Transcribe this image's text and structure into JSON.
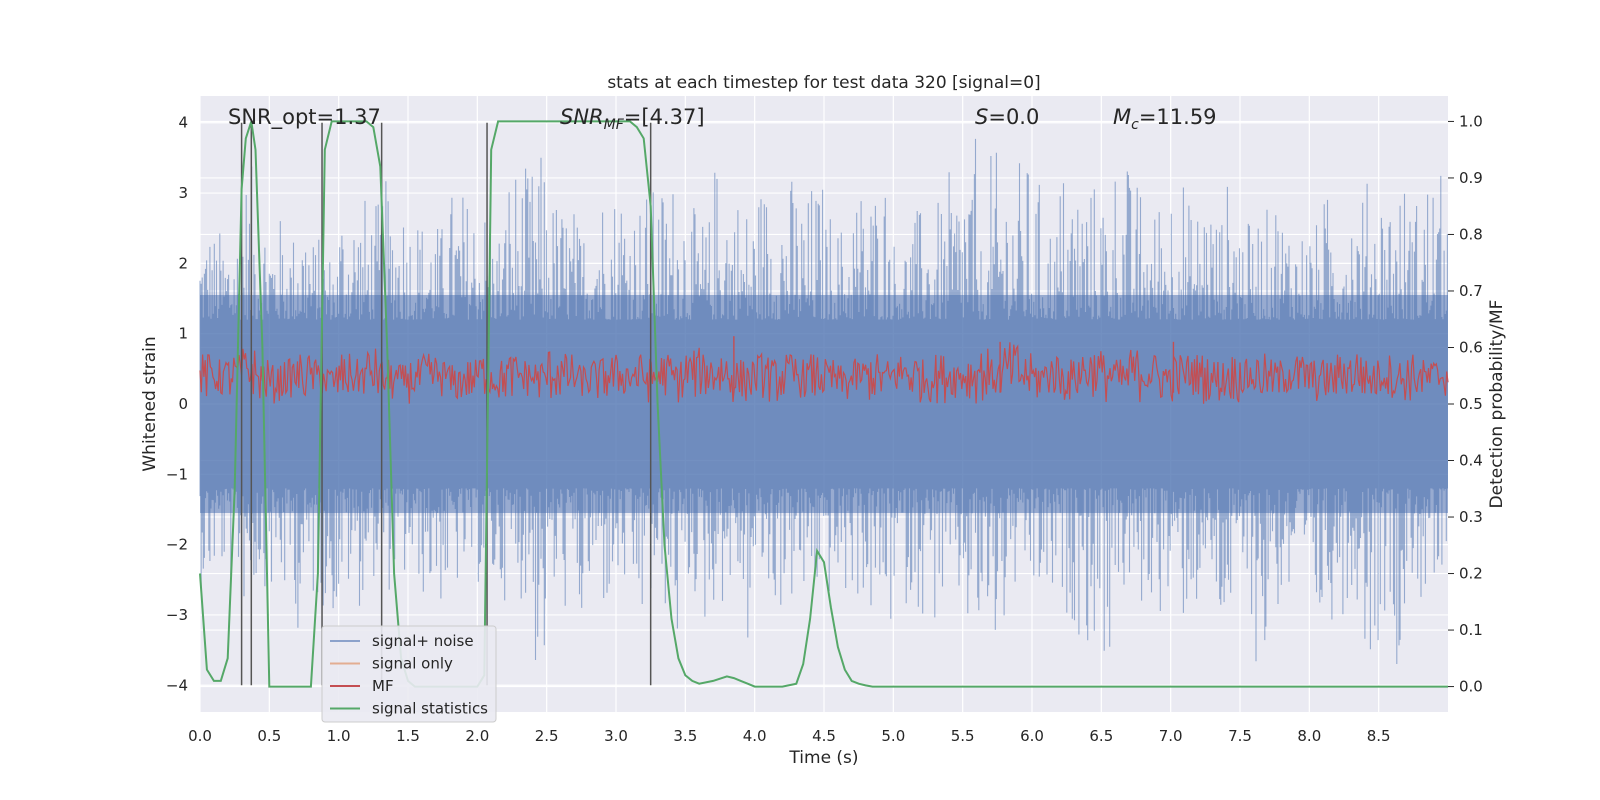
{
  "chart_data": {
    "type": "line",
    "title": "stats at each timestep for test data 320 [signal=0]",
    "xlabel": "Time (s)",
    "ylabel": "Whitened strain",
    "y2label": "Detection probability/MF",
    "xlim": [
      0.0,
      9.0
    ],
    "ylim": [
      -4.38,
      4.38
    ],
    "y2lim": [
      -0.045,
      1.045
    ],
    "xticks": [
      0.0,
      0.5,
      1.0,
      1.5,
      2.0,
      2.5,
      3.0,
      3.5,
      4.0,
      4.5,
      5.0,
      5.5,
      6.0,
      6.5,
      7.0,
      7.5,
      8.0,
      8.5
    ],
    "xtick_labels": [
      "0.0",
      "0.5",
      "1.0",
      "1.5",
      "2.0",
      "2.5",
      "3.0",
      "3.5",
      "4.0",
      "4.5",
      "5.0",
      "5.5",
      "6.0",
      "6.5",
      "7.0",
      "7.5",
      "8.0",
      "8.5"
    ],
    "yticks": [
      4,
      3,
      2,
      1,
      0,
      -1,
      -2,
      -3,
      -4
    ],
    "ytick_labels": [
      "4",
      "3",
      "2",
      "1",
      "0",
      "−1",
      "−2",
      "−3",
      "−4"
    ],
    "y2ticks": [
      1.0,
      0.9,
      0.8,
      0.7,
      0.6,
      0.5,
      0.4,
      0.3,
      0.2,
      0.1,
      0.0
    ],
    "y2tick_labels": [
      "1.0",
      "0.9",
      "0.8",
      "0.7",
      "0.6",
      "0.5",
      "0.4",
      "0.3",
      "0.2",
      "0.1",
      "0.0"
    ],
    "grid": true,
    "annotations": {
      "snr_opt": "SNR_opt=1.37",
      "snr_mf": "SNR",
      "snr_mf_sub": "MF",
      "snr_mf_value": "=[4.37]",
      "s_label": "S",
      "s_value": "=0.0",
      "mc_label": "M",
      "mc_sub": "c",
      "mc_value": "=11.59"
    },
    "vlines_time": [
      0.3,
      0.37,
      0.88,
      1.31,
      2.07,
      3.25
    ],
    "legend_position": "lower-left",
    "series": [
      {
        "name": "signal+ noise",
        "color": "#4c72b0",
        "axis": "left",
        "description": "noise amplitude envelope (max, min) per time bin",
        "x": [
          0.0,
          0.1,
          0.2,
          0.3,
          0.4,
          0.5,
          0.6,
          0.7,
          0.8,
          0.9,
          1.0,
          1.1,
          1.2,
          1.3,
          1.4,
          1.5,
          1.6,
          1.7,
          1.8,
          1.9,
          2.0,
          2.1,
          2.2,
          2.3,
          2.4,
          2.5,
          2.6,
          2.7,
          2.8,
          2.9,
          3.0,
          3.1,
          3.2,
          3.3,
          3.4,
          3.5,
          3.6,
          3.7,
          3.8,
          3.9,
          4.0,
          4.1,
          4.2,
          4.3,
          4.4,
          4.5,
          4.6,
          4.7,
          4.8,
          4.9,
          5.0,
          5.1,
          5.2,
          5.3,
          5.4,
          5.5,
          5.6,
          5.7,
          5.8,
          5.9,
          6.0,
          6.1,
          6.2,
          6.3,
          6.4,
          6.5,
          6.6,
          6.7,
          6.8,
          6.9,
          7.0,
          7.1,
          7.2,
          7.3,
          7.4,
          7.5,
          7.6,
          7.7,
          7.8,
          7.9,
          8.0,
          8.1,
          8.2,
          8.3,
          8.4,
          8.5,
          8.6,
          8.7,
          8.8,
          8.9
        ],
        "upper": [
          2.6,
          2.5,
          2.6,
          3.4,
          2.9,
          2.7,
          2.5,
          2.9,
          2.4,
          2.2,
          3.0,
          3.0,
          2.9,
          3.2,
          3.1,
          2.8,
          2.7,
          2.6,
          3.1,
          3.0,
          2.9,
          2.6,
          3.5,
          3.4,
          3.6,
          3.0,
          2.9,
          2.6,
          3.4,
          3.2,
          3.4,
          3.0,
          3.1,
          3.2,
          3.3,
          2.8,
          2.7,
          3.5,
          3.1,
          2.9,
          3.2,
          3.3,
          3.3,
          3.0,
          3.2,
          2.8,
          2.6,
          3.2,
          3.2,
          3.4,
          2.4,
          2.8,
          2.8,
          2.9,
          3.3,
          3.8,
          2.3,
          3.6,
          3.5,
          3.5,
          3.2,
          2.7,
          3.4,
          3.3,
          3.2,
          3.2,
          3.6,
          3.2,
          2.8,
          3.2,
          3.4,
          2.9,
          3.2,
          2.8,
          3.2,
          2.6,
          2.8,
          3.1,
          2.8,
          2.6,
          2.6,
          3.0,
          3.1,
          3.1,
          3.2,
          3.2,
          3.2,
          3.0,
          3.4,
          3.3
        ],
        "lower": [
          -2.7,
          -2.5,
          -2.6,
          -2.9,
          -2.6,
          -2.8,
          -2.9,
          -3.3,
          -2.9,
          -3.1,
          -2.8,
          -2.9,
          -2.5,
          -2.7,
          -2.6,
          -2.6,
          -2.8,
          -2.9,
          -2.7,
          -2.6,
          -2.6,
          -2.8,
          -2.8,
          -2.8,
          -3.9,
          -3.0,
          -3.0,
          -3.4,
          -2.9,
          -3.0,
          -2.8,
          -3.3,
          -3.0,
          -3.0,
          -3.6,
          -2.8,
          -3.3,
          -2.9,
          -2.7,
          -3.6,
          -2.6,
          -3.0,
          -2.9,
          -3.0,
          -2.8,
          -2.8,
          -2.9,
          -2.8,
          -3.2,
          -3.3,
          -2.9,
          -2.9,
          -3.2,
          -3.0,
          -3.0,
          -3.4,
          -3.6,
          -3.7,
          -2.8,
          -2.8,
          -2.9,
          -3.0,
          -3.1,
          -3.3,
          -3.6,
          -3.7,
          -2.8,
          -3.0,
          -2.9,
          -3.0,
          -3.2,
          -3.0,
          -2.8,
          -3.4,
          -3.2,
          -3.0,
          -4.0,
          -3.0,
          -3.0,
          -3.2,
          -3.4,
          -3.1,
          -3.0,
          -2.8,
          -3.6,
          -3.0,
          -3.7,
          -2.6,
          -3.0,
          -3.0
        ]
      },
      {
        "name": "signal only",
        "color": "#dd8452",
        "axis": "left",
        "x": [
          0.0,
          9.0
        ],
        "y": [
          0.0,
          0.0
        ]
      },
      {
        "name": "MF",
        "color": "#c44e52",
        "axis": "right",
        "description": "matched-filter output envelope (max, min) per time bin",
        "x": [
          0.0,
          0.1,
          0.2,
          0.3,
          0.4,
          0.5,
          0.6,
          0.7,
          0.8,
          0.9,
          1.0,
          1.1,
          1.2,
          1.3,
          1.4,
          1.5,
          1.6,
          1.7,
          1.8,
          1.9,
          2.0,
          2.1,
          2.2,
          2.3,
          2.4,
          2.5,
          2.6,
          2.7,
          2.8,
          2.9,
          3.0,
          3.1,
          3.2,
          3.3,
          3.4,
          3.5,
          3.6,
          3.7,
          3.8,
          3.9,
          4.0,
          4.1,
          4.2,
          4.3,
          4.4,
          4.5,
          4.6,
          4.7,
          4.8,
          4.9,
          5.0,
          5.1,
          5.2,
          5.3,
          5.4,
          5.5,
          5.6,
          5.7,
          5.8,
          5.9,
          6.0,
          6.1,
          6.2,
          6.3,
          6.4,
          6.5,
          6.6,
          6.7,
          6.8,
          6.9,
          7.0,
          7.1,
          7.2,
          7.3,
          7.4,
          7.5,
          7.6,
          7.7,
          7.8,
          7.9,
          8.0,
          8.1,
          8.2,
          8.3,
          8.4,
          8.5,
          8.6,
          8.7,
          8.8,
          8.9
        ],
        "upper": [
          0.59,
          0.58,
          0.59,
          0.6,
          0.58,
          0.57,
          0.58,
          0.59,
          0.58,
          0.57,
          0.59,
          0.58,
          0.6,
          0.58,
          0.57,
          0.58,
          0.59,
          0.58,
          0.57,
          0.58,
          0.59,
          0.58,
          0.59,
          0.58,
          0.58,
          0.6,
          0.59,
          0.57,
          0.58,
          0.59,
          0.58,
          0.59,
          0.58,
          0.59,
          0.58,
          0.6,
          0.59,
          0.6,
          0.58,
          0.58,
          0.59,
          0.58,
          0.59,
          0.58,
          0.59,
          0.58,
          0.57,
          0.58,
          0.59,
          0.58,
          0.59,
          0.59,
          0.58,
          0.59,
          0.58,
          0.59,
          0.6,
          0.58,
          0.61,
          0.59,
          0.58,
          0.59,
          0.58,
          0.6,
          0.6,
          0.59,
          0.58,
          0.6,
          0.59,
          0.58,
          0.59,
          0.59,
          0.59,
          0.58,
          0.59,
          0.58,
          0.59,
          0.58,
          0.59,
          0.59,
          0.58,
          0.58,
          0.59,
          0.6,
          0.58,
          0.59,
          0.58,
          0.59,
          0.58,
          0.58
        ],
        "lower": [
          0.5,
          0.51,
          0.5,
          0.51,
          0.5,
          0.5,
          0.51,
          0.5,
          0.51,
          0.5,
          0.5,
          0.51,
          0.5,
          0.5,
          0.51,
          0.5,
          0.5,
          0.51,
          0.5,
          0.5,
          0.51,
          0.5,
          0.5,
          0.51,
          0.5,
          0.5,
          0.5,
          0.51,
          0.5,
          0.5,
          0.51,
          0.5,
          0.5,
          0.51,
          0.5,
          0.5,
          0.51,
          0.5,
          0.5,
          0.5,
          0.51,
          0.5,
          0.5,
          0.51,
          0.5,
          0.5,
          0.5,
          0.51,
          0.5,
          0.5,
          0.51,
          0.5,
          0.5,
          0.5,
          0.51,
          0.5,
          0.5,
          0.51,
          0.5,
          0.5,
          0.5,
          0.51,
          0.5,
          0.5,
          0.51,
          0.5,
          0.5,
          0.5,
          0.51,
          0.5,
          0.5,
          0.51,
          0.5,
          0.5,
          0.5,
          0.51,
          0.5,
          0.5,
          0.51,
          0.5,
          0.5,
          0.5,
          0.51,
          0.5,
          0.5,
          0.51,
          0.5,
          0.5,
          0.5,
          0.51
        ],
        "peaks": [
          {
            "x": 0.88,
            "y": 0.63
          },
          {
            "x": 3.85,
            "y": 0.62
          },
          {
            "x": 5.77,
            "y": 0.61
          },
          {
            "x": 7.02,
            "y": 0.61
          }
        ]
      },
      {
        "name": "signal statistics",
        "color": "#55a868",
        "axis": "right",
        "x": [
          0.0,
          0.05,
          0.1,
          0.15,
          0.2,
          0.25,
          0.3,
          0.33,
          0.37,
          0.4,
          0.45,
          0.5,
          0.55,
          0.6,
          0.7,
          0.8,
          0.85,
          0.9,
          0.95,
          1.0,
          1.1,
          1.2,
          1.25,
          1.3,
          1.35,
          1.4,
          1.45,
          1.5,
          1.55,
          1.6,
          1.7,
          1.8,
          1.9,
          2.0,
          2.05,
          2.1,
          2.15,
          2.2,
          2.5,
          2.8,
          3.0,
          3.1,
          3.15,
          3.2,
          3.25,
          3.3,
          3.35,
          3.4,
          3.45,
          3.5,
          3.55,
          3.6,
          3.7,
          3.8,
          3.85,
          3.9,
          3.95,
          4.0,
          4.1,
          4.2,
          4.3,
          4.35,
          4.4,
          4.45,
          4.5,
          4.55,
          4.6,
          4.65,
          4.7,
          4.75,
          4.8,
          4.85,
          4.9,
          5.0,
          6.0,
          7.0,
          8.0,
          9.0
        ],
        "y": [
          0.2,
          0.03,
          0.01,
          0.01,
          0.05,
          0.35,
          0.88,
          0.97,
          1.0,
          0.95,
          0.6,
          0.0,
          0.0,
          0.0,
          0.0,
          0.0,
          0.2,
          0.95,
          1.0,
          1.0,
          1.0,
          1.0,
          0.99,
          0.92,
          0.6,
          0.2,
          0.05,
          0.01,
          0.0,
          0.0,
          0.0,
          0.0,
          0.0,
          0.0,
          0.02,
          0.95,
          1.0,
          1.0,
          1.0,
          1.0,
          1.0,
          1.0,
          0.99,
          0.97,
          0.85,
          0.5,
          0.25,
          0.12,
          0.05,
          0.02,
          0.01,
          0.005,
          0.01,
          0.018,
          0.015,
          0.01,
          0.005,
          0.0,
          0.0,
          0.0,
          0.005,
          0.04,
          0.12,
          0.24,
          0.22,
          0.14,
          0.07,
          0.03,
          0.01,
          0.005,
          0.002,
          0.0,
          0.0,
          0.0,
          0.0,
          0.0,
          0.0,
          0.0
        ]
      }
    ]
  }
}
